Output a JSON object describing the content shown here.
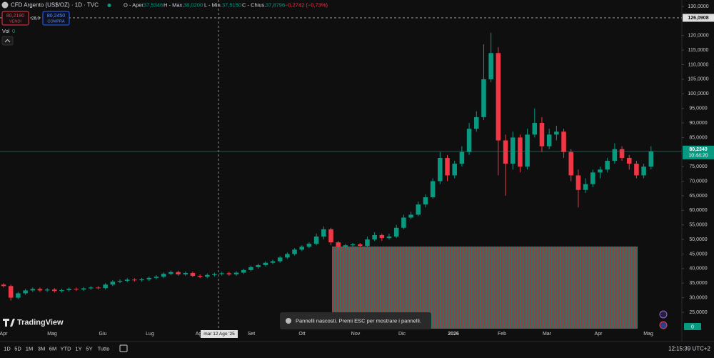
{
  "header": {
    "symbol": "CFD Argento (US$/OZ) · 1D · TVC",
    "ohlc": [
      {
        "label": "O - Aper.",
        "value": "37,5346"
      },
      {
        "label": "H - Max.",
        "value": "38,0200"
      },
      {
        "label": "L - Min.",
        "value": "37,5150"
      },
      {
        "label": "C - Chius.",
        "value": "37,8796"
      }
    ],
    "change": "−0,2742 (−0,73%)"
  },
  "trade": {
    "sell_price": "80,2190",
    "sell_label": "VENDI",
    "spread": "26,0",
    "buy_price": "80,2450",
    "buy_label": "COMPRA"
  },
  "volume_label": "Vol",
  "volume_value": "0",
  "volume_axis": "0",
  "logo": "TradingView",
  "toast": "Pannelli nascosti. Premi ESC per mostrare i pannelli.",
  "ranges": [
    "1D",
    "5D",
    "1M",
    "3M",
    "6M",
    "YTD",
    "1Y",
    "5Y",
    "Tutto"
  ],
  "clock": "12:15:39 UTC+2",
  "chart_data": {
    "type": "candlestick",
    "up_color": "#089981",
    "down_color": "#f23645",
    "month_labels": [
      "Apr",
      "Mag",
      "Giu",
      "Lug",
      "Ago",
      "Set",
      "Ott",
      "Nov",
      "Dic",
      "2026",
      "Feb",
      "Mar",
      "Apr",
      "Mag"
    ],
    "crosshair_date": "mar 12 Ago '25",
    "crosshair_price": {
      "value": 126.0908,
      "label": "126,0908"
    },
    "last_price": {
      "value": 80.234,
      "label": "80,2340"
    },
    "countdown": "10:44:20",
    "ylim": [
      24,
      131
    ],
    "yticks": [
      {
        "value": 130,
        "label": "130,0000"
      },
      {
        "value": 120,
        "label": "120,0000"
      },
      {
        "value": 115,
        "label": "115,0000"
      },
      {
        "value": 110,
        "label": "110,0000"
      },
      {
        "value": 105,
        "label": "105,0000"
      },
      {
        "value": 100,
        "label": "100,0000"
      },
      {
        "value": 95,
        "label": "95,0000"
      },
      {
        "value": 90,
        "label": "90,0000"
      },
      {
        "value": 85,
        "label": "85,0000"
      },
      {
        "value": 75,
        "label": "75,0000"
      },
      {
        "value": 70,
        "label": "70,0000"
      },
      {
        "value": 65,
        "label": "65,0000"
      },
      {
        "value": 60,
        "label": "60,0000"
      },
      {
        "value": 55,
        "label": "55,0000"
      },
      {
        "value": 50,
        "label": "50,0000"
      },
      {
        "value": 45,
        "label": "45,0000"
      },
      {
        "value": 40,
        "label": "40,0000"
      },
      {
        "value": 35,
        "label": "35,0000"
      },
      {
        "value": 30,
        "label": "30,0000"
      },
      {
        "value": 25,
        "label": "25,0000"
      }
    ],
    "open": [
      34.5,
      34,
      30,
      31.5,
      32.5,
      33,
      32.5,
      32.8,
      32.3,
      32.6,
      33,
      32.8,
      33.2,
      33.5,
      33.3,
      34.5,
      35.5,
      35.8,
      36.2,
      36,
      36.3,
      36.8,
      37.2,
      38.2,
      38.8,
      38,
      38.5,
      37.5,
      37.2,
      37.8,
      38.1,
      38.4,
      38,
      38.6,
      39.5,
      40.5,
      41.2,
      42,
      42.5,
      43.8,
      45,
      46.5,
      47.5,
      48.5,
      51,
      53.5,
      49,
      47.5,
      48,
      48.3,
      47.8,
      50,
      51.5,
      50.5,
      51,
      54,
      57.5,
      58.5,
      62,
      64.5,
      70,
      78,
      72,
      76,
      80,
      88,
      92,
      105,
      114,
      84,
      76,
      85,
      75,
      86,
      90,
      82,
      86,
      87,
      80,
      72,
      67,
      69,
      73,
      74,
      77,
      81,
      78,
      76,
      72,
      75
    ],
    "high": [
      35,
      34.5,
      32,
      33,
      33.5,
      33.5,
      33.3,
      33.3,
      33.1,
      33.5,
      33.5,
      33.7,
      34,
      34,
      35,
      36,
      36.3,
      36.7,
      36.7,
      36.8,
      37.3,
      37.7,
      38.7,
      39.3,
      39.3,
      39,
      39,
      38,
      38.3,
      38.6,
      38.9,
      38.9,
      39.1,
      40,
      41,
      41.7,
      42.5,
      43,
      44.3,
      45.5,
      47,
      48,
      49,
      52,
      54.5,
      54,
      49.5,
      48.5,
      48.8,
      48.8,
      51,
      52.5,
      52,
      52,
      55,
      58.5,
      59.5,
      63,
      65.5,
      71,
      80,
      79,
      77,
      82,
      90,
      94,
      117,
      121,
      116,
      86,
      87,
      86,
      88,
      95,
      92,
      88,
      89,
      88,
      81,
      74,
      71,
      74,
      75,
      78,
      83,
      82,
      79,
      77,
      76,
      82
    ],
    "low": [
      33.5,
      29,
      29.5,
      31,
      32,
      32,
      32,
      31.8,
      31.8,
      32.1,
      32.3,
      32.3,
      32.7,
      32.8,
      32.8,
      34,
      35,
      35.3,
      35.5,
      35.5,
      35.8,
      36.3,
      36.7,
      37.7,
      37.5,
      37.5,
      37,
      36.7,
      36.7,
      37.3,
      37.6,
      37.5,
      37.5,
      38.1,
      39,
      40,
      40.7,
      41.5,
      42,
      43.3,
      44.5,
      46,
      47,
      48,
      50,
      48,
      46.5,
      47,
      47.5,
      47.3,
      47.3,
      49.5,
      49.5,
      50,
      50.5,
      53.5,
      57,
      58,
      61,
      64,
      69,
      70,
      71,
      75,
      79,
      87,
      91,
      104,
      72,
      65,
      74,
      73,
      74,
      85,
      80,
      81,
      84,
      78,
      70,
      61,
      66,
      68,
      71,
      73,
      76,
      77,
      74,
      71,
      71,
      74
    ],
    "close": [
      34,
      30,
      31.5,
      32.5,
      33,
      32.5,
      32.8,
      32.3,
      32.6,
      33,
      32.8,
      33.2,
      33.5,
      33.3,
      34.5,
      35.5,
      35.8,
      36.2,
      36,
      36.3,
      36.8,
      37.2,
      38.2,
      38.8,
      38,
      38.5,
      37.5,
      37.2,
      37.8,
      38.1,
      38.4,
      38,
      38.6,
      39.5,
      40.5,
      41.2,
      42,
      42.5,
      43.8,
      45,
      46.5,
      47.5,
      48.5,
      51,
      53.5,
      49,
      47.5,
      48,
      48.3,
      47.8,
      50,
      51.5,
      50.5,
      51,
      54,
      57.5,
      58.5,
      62,
      64.5,
      70,
      78,
      72,
      76,
      80,
      88,
      92,
      105,
      114,
      84,
      76,
      85,
      75,
      86,
      90,
      82,
      86,
      87,
      80,
      72,
      67,
      69,
      73,
      74,
      77,
      81,
      78,
      76,
      72,
      75,
      80.23
    ]
  }
}
